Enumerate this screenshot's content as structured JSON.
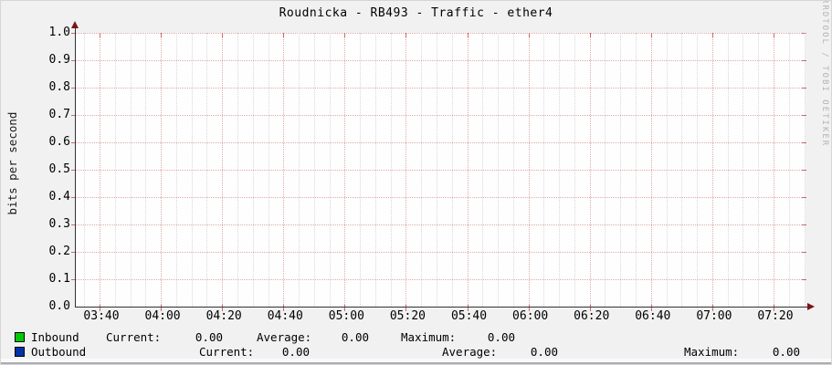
{
  "title": "Roudnicka - RB493 - Traffic - ether4",
  "watermark": "RRDTOOL / TOBI OETIKER",
  "y_axis": {
    "label": "bits per second",
    "ticks": [
      "1.0",
      "0.9",
      "0.8",
      "0.7",
      "0.6",
      "0.5",
      "0.4",
      "0.3",
      "0.2",
      "0.1",
      "0.0"
    ]
  },
  "x_axis": {
    "ticks": [
      "03:40",
      "04:00",
      "04:20",
      "04:40",
      "05:00",
      "05:20",
      "05:40",
      "06:00",
      "06:20",
      "06:40",
      "07:00",
      "07:20"
    ]
  },
  "legend": {
    "stat_labels": {
      "current": "Current:",
      "average": "Average:",
      "maximum": "Maximum:"
    },
    "rows": [
      {
        "name": "Inbound",
        "color": "#00cc00",
        "current": "0.00",
        "average": "0.00",
        "maximum": "0.00"
      },
      {
        "name": "Outbound",
        "color": "#0033aa",
        "current": "0.00",
        "average": "0.00",
        "maximum": "0.00"
      }
    ]
  },
  "colors": {
    "major_grid": "#e2a9a9",
    "minor_grid": "#d8d8d8",
    "axis": "#333333",
    "arrow": "#7d1414",
    "canvas": "#fefefe",
    "background": "#f1f1f1",
    "inbound": "#00cc00",
    "outbound": "#0033aa"
  },
  "chart_data": {
    "type": "line",
    "title": "Roudnicka - RB493 - Traffic - ether4",
    "xlabel": "",
    "ylabel": "bits per second",
    "ylim": [
      0.0,
      1.0
    ],
    "y_ticks": [
      0.0,
      0.1,
      0.2,
      0.3,
      0.4,
      0.5,
      0.6,
      0.7,
      0.8,
      0.9,
      1.0
    ],
    "x": [
      "03:40",
      "04:00",
      "04:20",
      "04:40",
      "05:00",
      "05:20",
      "05:40",
      "06:00",
      "06:20",
      "06:40",
      "07:00",
      "07:20"
    ],
    "grid": true,
    "legend_position": "bottom",
    "series": [
      {
        "name": "Inbound",
        "color": "#00cc00",
        "values": [
          0,
          0,
          0,
          0,
          0,
          0,
          0,
          0,
          0,
          0,
          0,
          0
        ],
        "stats": {
          "current": 0.0,
          "average": 0.0,
          "maximum": 0.0
        }
      },
      {
        "name": "Outbound",
        "color": "#0033aa",
        "values": [
          0,
          0,
          0,
          0,
          0,
          0,
          0,
          0,
          0,
          0,
          0,
          0
        ],
        "stats": {
          "current": 0.0,
          "average": 0.0,
          "maximum": 0.0
        }
      }
    ],
    "note": "Empty graph: no traffic data drawn, all series values 0.00"
  }
}
